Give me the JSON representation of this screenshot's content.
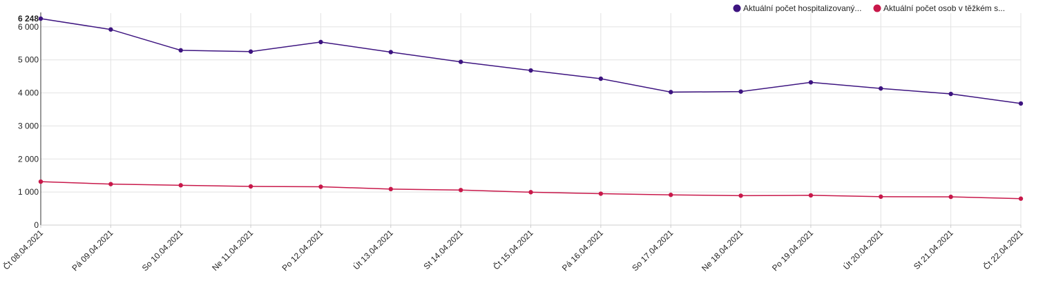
{
  "chart_data": {
    "type": "line",
    "categories": [
      "Čt 08.04.2021",
      "Pá 09.04.2021",
      "So 10.04.2021",
      "Ne 11.04.2021",
      "Po 12.04.2021",
      "Út 13.04.2021",
      "St 14.04.2021",
      "Čt 15.04.2021",
      "Pá 16.04.2021",
      "So 17.04.2021",
      "Ne 18.04.2021",
      "Po 19.04.2021",
      "Út 20.04.2021",
      "St 21.04.2021",
      "Čt 22.04.2021"
    ],
    "series": [
      {
        "name": "Aktuální počet hospitalizovaný...",
        "color": "#3d1480",
        "values": [
          6248,
          5920,
          5290,
          5250,
          5540,
          5235,
          4940,
          4680,
          4430,
          4025,
          4040,
          4320,
          4135,
          3970,
          3680
        ]
      },
      {
        "name": "Aktuální počet osob v těžkém s...",
        "color": "#c8184a",
        "values": [
          1315,
          1240,
          1205,
          1170,
          1160,
          1090,
          1060,
          995,
          950,
          915,
          890,
          900,
          860,
          855,
          800
        ]
      }
    ],
    "yticks": [
      0,
      1000,
      2000,
      3000,
      4000,
      5000,
      6000
    ],
    "ytick_labels": [
      "0",
      "1 000",
      "2 000",
      "3 000",
      "4 000",
      "5 000",
      "6 000"
    ],
    "ymax_label": "6 248",
    "ylim": [
      0,
      6248
    ],
    "grid": true,
    "legend": "top-right"
  }
}
